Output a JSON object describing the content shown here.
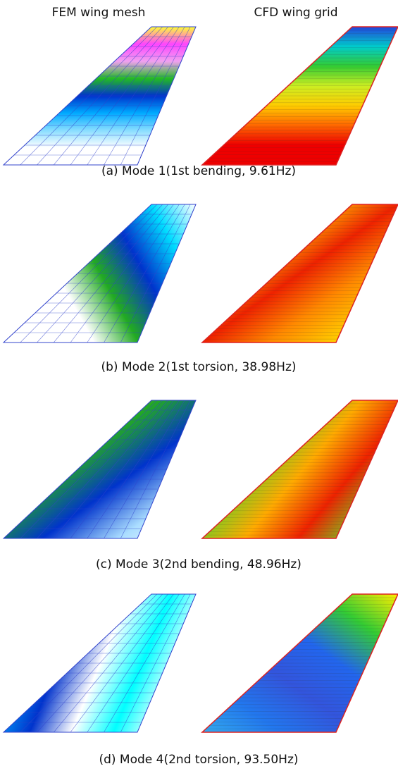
{
  "header": {
    "left": "FEM wing mesh",
    "right": "CFD wing grid"
  },
  "panels": [
    {
      "caption": "(a) Mode 1(1st bending, 9.61Hz)"
    },
    {
      "caption": "(b) Mode 2(1st torsion, 38.98Hz)"
    },
    {
      "caption": "(c) Mode 3(2nd bending, 48.96Hz)"
    },
    {
      "caption": "(d) Mode 4(2nd torsion, 93.50Hz)"
    }
  ]
}
